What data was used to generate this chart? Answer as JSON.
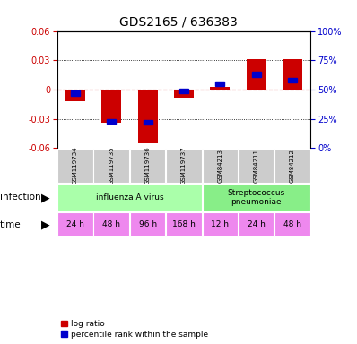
{
  "title": "GDS2165 / 636383",
  "samples": [
    "GSM119734",
    "GSM119735",
    "GSM119736",
    "GSM119737",
    "GSM84213",
    "GSM84211",
    "GSM84212"
  ],
  "log_ratio": [
    -0.012,
    -0.034,
    -0.055,
    -0.008,
    0.003,
    0.031,
    0.031
  ],
  "percentile_rank": [
    47,
    23,
    22,
    49,
    55,
    63,
    58
  ],
  "ylim": [
    -0.06,
    0.06
  ],
  "yticks": [
    -0.06,
    -0.03,
    0,
    0.03,
    0.06
  ],
  "right_yticks": [
    0,
    25,
    50,
    75,
    100
  ],
  "right_ylim": [
    0,
    100
  ],
  "bar_color": "#cc0000",
  "dot_color": "#0000cc",
  "zero_line_color": "#cc0000",
  "grid_color": "#000000",
  "infection_groups": [
    {
      "label": "influenza A virus",
      "start": 0,
      "end": 4,
      "color": "#aaffaa"
    },
    {
      "label": "Streptococcus\npneumoniae",
      "start": 4,
      "end": 7,
      "color": "#88ee88"
    }
  ],
  "time_labels": [
    "24 h",
    "48 h",
    "96 h",
    "168 h",
    "12 h",
    "24 h",
    "48 h"
  ],
  "time_colors": [
    "#ee88ee",
    "#ee88ee",
    "#ee88ee",
    "#ee88ee",
    "#ee88ee",
    "#ee88ee",
    "#ee88ee"
  ],
  "sample_bg_color": "#cccccc",
  "left_label_color": "#cc0000",
  "right_label_color": "#0000cc",
  "bg_color": "#ffffff"
}
